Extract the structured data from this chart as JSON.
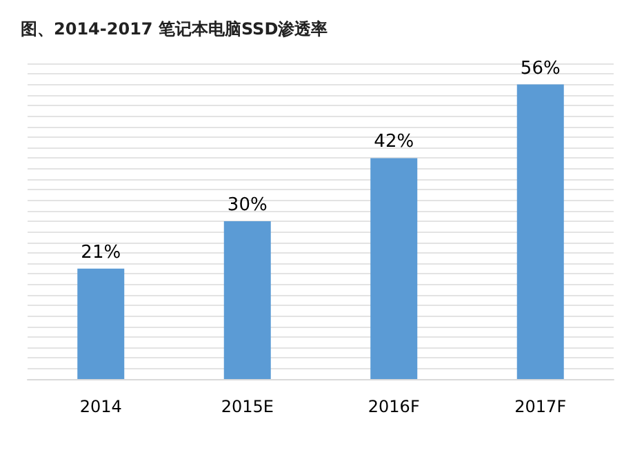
{
  "chart_data": {
    "type": "bar",
    "title": "图、2014-2017 笔记本电脑SSD渗透率",
    "categories": [
      "2014",
      "2015E",
      "2016F",
      "2017F"
    ],
    "values": [
      21,
      30,
      42,
      56
    ],
    "value_labels": [
      "21%",
      "30%",
      "42%",
      "56%"
    ],
    "color": "#5b9bd5",
    "ylim": [
      0,
      60
    ],
    "yticks": [
      {
        "value": 0,
        "label": null
      },
      {
        "value": 2,
        "label": null
      },
      {
        "value": 4,
        "label": null
      },
      {
        "value": 6,
        "label": null
      },
      {
        "value": 8,
        "label": null
      },
      {
        "value": 10,
        "label": null
      },
      {
        "value": 12,
        "label": null
      },
      {
        "value": 14,
        "label": null
      },
      {
        "value": 16,
        "label": null
      },
      {
        "value": 18,
        "label": null
      },
      {
        "value": 20,
        "label": null
      },
      {
        "value": 22,
        "label": null
      },
      {
        "value": 24,
        "label": null
      },
      {
        "value": 26,
        "label": null
      },
      {
        "value": 28,
        "label": null
      },
      {
        "value": 30,
        "label": null
      },
      {
        "value": 32,
        "label": null
      },
      {
        "value": 34,
        "label": null
      },
      {
        "value": 36,
        "label": null
      },
      {
        "value": 38,
        "label": null
      },
      {
        "value": 40,
        "label": null
      },
      {
        "value": 42,
        "label": null
      },
      {
        "value": 44,
        "label": null
      },
      {
        "value": 46,
        "label": null
      },
      {
        "value": 48,
        "label": null
      },
      {
        "value": 50,
        "label": null
      },
      {
        "value": 52,
        "label": null
      },
      {
        "value": 54,
        "label": null
      },
      {
        "value": 56,
        "label": null
      },
      {
        "value": 58,
        "label": null
      },
      {
        "value": 60,
        "label": null
      }
    ],
    "grid": "y",
    "tick_labels": "x"
  }
}
